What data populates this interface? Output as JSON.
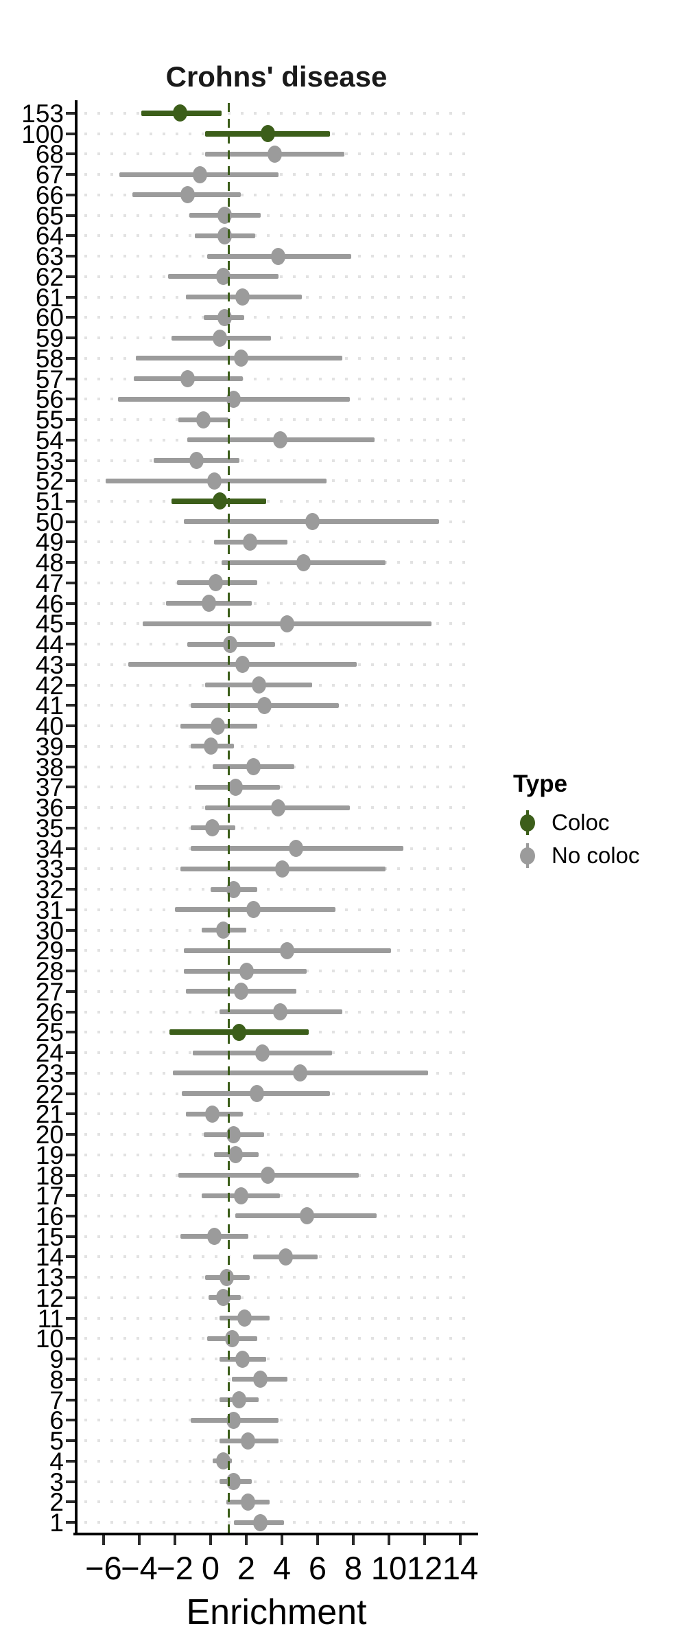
{
  "colors": {
    "coloc": "#3c5e1a",
    "no_coloc": "#9b9b9b",
    "reference_line": "#3c5e1a",
    "grid_dots": "#e2e2e2",
    "axis": "#000000",
    "title_text": "#1a1a1a"
  },
  "chart_data": {
    "type": "scatter",
    "subtype": "forest-pointrange",
    "title": "Crohns' disease",
    "xlabel": "Enrichment",
    "ylabel": "",
    "xlim": [
      -7.5,
      15
    ],
    "x_ticks": [
      -6,
      -4,
      -2,
      0,
      2,
      4,
      6,
      8,
      10,
      12,
      14
    ],
    "x_tick_labels": [
      "−6",
      "−4",
      "−2",
      "0",
      "2",
      "4",
      "6",
      "8",
      "10",
      "12",
      "14"
    ],
    "reference_line_x": 1,
    "grid": "dotted-horizontal",
    "legend": {
      "title": "Type",
      "position": "right",
      "entries": [
        {
          "label": "Coloc",
          "color": "#3c5e1a"
        },
        {
          "label": "No coloc",
          "color": "#9b9b9b"
        }
      ]
    },
    "rows": [
      {
        "label": "153",
        "estimate": -1.7,
        "ci_low": -3.9,
        "ci_high": 0.6,
        "type": "Coloc"
      },
      {
        "label": "100",
        "estimate": 3.2,
        "ci_low": -0.3,
        "ci_high": 6.7,
        "type": "Coloc"
      },
      {
        "label": "68",
        "estimate": 3.6,
        "ci_low": -0.3,
        "ci_high": 7.5,
        "type": "No coloc"
      },
      {
        "label": "67",
        "estimate": -0.6,
        "ci_low": -5.1,
        "ci_high": 3.8,
        "type": "No coloc"
      },
      {
        "label": "66",
        "estimate": -1.3,
        "ci_low": -4.4,
        "ci_high": 1.7,
        "type": "No coloc"
      },
      {
        "label": "65",
        "estimate": 0.8,
        "ci_low": -1.2,
        "ci_high": 2.8,
        "type": "No coloc"
      },
      {
        "label": "64",
        "estimate": 0.8,
        "ci_low": -0.9,
        "ci_high": 2.5,
        "type": "No coloc"
      },
      {
        "label": "63",
        "estimate": 3.8,
        "ci_low": -0.2,
        "ci_high": 7.9,
        "type": "No coloc"
      },
      {
        "label": "62",
        "estimate": 0.7,
        "ci_low": -2.4,
        "ci_high": 3.8,
        "type": "No coloc"
      },
      {
        "label": "61",
        "estimate": 1.8,
        "ci_low": -1.4,
        "ci_high": 5.1,
        "type": "No coloc"
      },
      {
        "label": "60",
        "estimate": 0.8,
        "ci_low": -0.4,
        "ci_high": 1.9,
        "type": "No coloc"
      },
      {
        "label": "59",
        "estimate": 0.5,
        "ci_low": -2.2,
        "ci_high": 3.4,
        "type": "No coloc"
      },
      {
        "label": "58",
        "estimate": 1.7,
        "ci_low": -4.2,
        "ci_high": 7.4,
        "type": "No coloc"
      },
      {
        "label": "57",
        "estimate": -1.3,
        "ci_low": -4.3,
        "ci_high": 1.8,
        "type": "No coloc"
      },
      {
        "label": "56",
        "estimate": 1.3,
        "ci_low": -5.2,
        "ci_high": 7.8,
        "type": "No coloc"
      },
      {
        "label": "55",
        "estimate": -0.4,
        "ci_low": -1.8,
        "ci_high": 1.0,
        "type": "No coloc"
      },
      {
        "label": "54",
        "estimate": 3.9,
        "ci_low": -1.3,
        "ci_high": 9.2,
        "type": "No coloc"
      },
      {
        "label": "53",
        "estimate": -0.8,
        "ci_low": -3.2,
        "ci_high": 1.6,
        "type": "No coloc"
      },
      {
        "label": "52",
        "estimate": 0.2,
        "ci_low": -5.9,
        "ci_high": 6.5,
        "type": "No coloc"
      },
      {
        "label": "51",
        "estimate": 0.5,
        "ci_low": -2.2,
        "ci_high": 3.1,
        "type": "Coloc"
      },
      {
        "label": "50",
        "estimate": 5.7,
        "ci_low": -1.5,
        "ci_high": 12.8,
        "type": "No coloc"
      },
      {
        "label": "49",
        "estimate": 2.2,
        "ci_low": 0.2,
        "ci_high": 4.3,
        "type": "No coloc"
      },
      {
        "label": "48",
        "estimate": 5.2,
        "ci_low": 0.6,
        "ci_high": 9.8,
        "type": "No coloc"
      },
      {
        "label": "47",
        "estimate": 0.3,
        "ci_low": -1.9,
        "ci_high": 2.6,
        "type": "No coloc"
      },
      {
        "label": "46",
        "estimate": -0.1,
        "ci_low": -2.5,
        "ci_high": 2.3,
        "type": "No coloc"
      },
      {
        "label": "45",
        "estimate": 4.3,
        "ci_low": -3.8,
        "ci_high": 12.4,
        "type": "No coloc"
      },
      {
        "label": "44",
        "estimate": 1.1,
        "ci_low": -1.3,
        "ci_high": 3.6,
        "type": "No coloc"
      },
      {
        "label": "43",
        "estimate": 1.8,
        "ci_low": -4.6,
        "ci_high": 8.2,
        "type": "No coloc"
      },
      {
        "label": "42",
        "estimate": 2.7,
        "ci_low": -0.3,
        "ci_high": 5.7,
        "type": "No coloc"
      },
      {
        "label": "41",
        "estimate": 3.0,
        "ci_low": -1.1,
        "ci_high": 7.2,
        "type": "No coloc"
      },
      {
        "label": "40",
        "estimate": 0.4,
        "ci_low": -1.7,
        "ci_high": 2.6,
        "type": "No coloc"
      },
      {
        "label": "39",
        "estimate": 0.0,
        "ci_low": -1.1,
        "ci_high": 1.3,
        "type": "No coloc"
      },
      {
        "label": "38",
        "estimate": 2.4,
        "ci_low": 0.1,
        "ci_high": 4.7,
        "type": "No coloc"
      },
      {
        "label": "37",
        "estimate": 1.4,
        "ci_low": -0.9,
        "ci_high": 3.9,
        "type": "No coloc"
      },
      {
        "label": "36",
        "estimate": 3.8,
        "ci_low": -0.3,
        "ci_high": 7.8,
        "type": "No coloc"
      },
      {
        "label": "35",
        "estimate": 0.1,
        "ci_low": -1.1,
        "ci_high": 1.4,
        "type": "No coloc"
      },
      {
        "label": "34",
        "estimate": 4.8,
        "ci_low": -1.1,
        "ci_high": 10.8,
        "type": "No coloc"
      },
      {
        "label": "33",
        "estimate": 4.0,
        "ci_low": -1.7,
        "ci_high": 9.8,
        "type": "No coloc"
      },
      {
        "label": "32",
        "estimate": 1.3,
        "ci_low": 0.0,
        "ci_high": 2.6,
        "type": "No coloc"
      },
      {
        "label": "31",
        "estimate": 2.4,
        "ci_low": -2.0,
        "ci_high": 7.0,
        "type": "No coloc"
      },
      {
        "label": "30",
        "estimate": 0.7,
        "ci_low": -0.5,
        "ci_high": 2.0,
        "type": "No coloc"
      },
      {
        "label": "29",
        "estimate": 4.3,
        "ci_low": -1.5,
        "ci_high": 10.1,
        "type": "No coloc"
      },
      {
        "label": "28",
        "estimate": 2.0,
        "ci_low": -1.5,
        "ci_high": 5.4,
        "type": "No coloc"
      },
      {
        "label": "27",
        "estimate": 1.7,
        "ci_low": -1.4,
        "ci_high": 4.8,
        "type": "No coloc"
      },
      {
        "label": "26",
        "estimate": 3.9,
        "ci_low": 0.5,
        "ci_high": 7.4,
        "type": "No coloc"
      },
      {
        "label": "25",
        "estimate": 1.6,
        "ci_low": -2.3,
        "ci_high": 5.5,
        "type": "Coloc"
      },
      {
        "label": "24",
        "estimate": 2.9,
        "ci_low": -1.0,
        "ci_high": 6.8,
        "type": "No coloc"
      },
      {
        "label": "23",
        "estimate": 5.0,
        "ci_low": -2.1,
        "ci_high": 12.2,
        "type": "No coloc"
      },
      {
        "label": "22",
        "estimate": 2.6,
        "ci_low": -1.6,
        "ci_high": 6.7,
        "type": "No coloc"
      },
      {
        "label": "21",
        "estimate": 0.1,
        "ci_low": -1.4,
        "ci_high": 1.8,
        "type": "No coloc"
      },
      {
        "label": "20",
        "estimate": 1.3,
        "ci_low": -0.4,
        "ci_high": 3.0,
        "type": "No coloc"
      },
      {
        "label": "19",
        "estimate": 1.4,
        "ci_low": 0.2,
        "ci_high": 2.7,
        "type": "No coloc"
      },
      {
        "label": "18",
        "estimate": 3.2,
        "ci_low": -1.8,
        "ci_high": 8.3,
        "type": "No coloc"
      },
      {
        "label": "17",
        "estimate": 1.7,
        "ci_low": -0.5,
        "ci_high": 3.9,
        "type": "No coloc"
      },
      {
        "label": "16",
        "estimate": 5.4,
        "ci_low": 1.4,
        "ci_high": 9.3,
        "type": "No coloc"
      },
      {
        "label": "15",
        "estimate": 0.2,
        "ci_low": -1.7,
        "ci_high": 2.1,
        "type": "No coloc"
      },
      {
        "label": "14",
        "estimate": 4.2,
        "ci_low": 2.4,
        "ci_high": 6.0,
        "type": "No coloc"
      },
      {
        "label": "13",
        "estimate": 0.9,
        "ci_low": -0.3,
        "ci_high": 2.2,
        "type": "No coloc"
      },
      {
        "label": "12",
        "estimate": 0.7,
        "ci_low": -0.1,
        "ci_high": 1.7,
        "type": "No coloc"
      },
      {
        "label": "11",
        "estimate": 1.9,
        "ci_low": 0.5,
        "ci_high": 3.3,
        "type": "No coloc"
      },
      {
        "label": "10",
        "estimate": 1.2,
        "ci_low": -0.2,
        "ci_high": 2.6,
        "type": "No coloc"
      },
      {
        "label": "9",
        "estimate": 1.8,
        "ci_low": 0.5,
        "ci_high": 3.1,
        "type": "No coloc"
      },
      {
        "label": "8",
        "estimate": 2.8,
        "ci_low": 1.2,
        "ci_high": 4.3,
        "type": "No coloc"
      },
      {
        "label": "7",
        "estimate": 1.6,
        "ci_low": 0.5,
        "ci_high": 2.7,
        "type": "No coloc"
      },
      {
        "label": "6",
        "estimate": 1.3,
        "ci_low": -1.1,
        "ci_high": 3.8,
        "type": "No coloc"
      },
      {
        "label": "5",
        "estimate": 2.1,
        "ci_low": 0.5,
        "ci_high": 3.8,
        "type": "No coloc"
      },
      {
        "label": "4",
        "estimate": 0.7,
        "ci_low": 0.1,
        "ci_high": 1.2,
        "type": "No coloc"
      },
      {
        "label": "3",
        "estimate": 1.3,
        "ci_low": 0.5,
        "ci_high": 2.3,
        "type": "No coloc"
      },
      {
        "label": "2",
        "estimate": 2.1,
        "ci_low": 0.9,
        "ci_high": 3.3,
        "type": "No coloc"
      },
      {
        "label": "1",
        "estimate": 2.8,
        "ci_low": 1.3,
        "ci_high": 4.1,
        "type": "No coloc"
      }
    ]
  }
}
